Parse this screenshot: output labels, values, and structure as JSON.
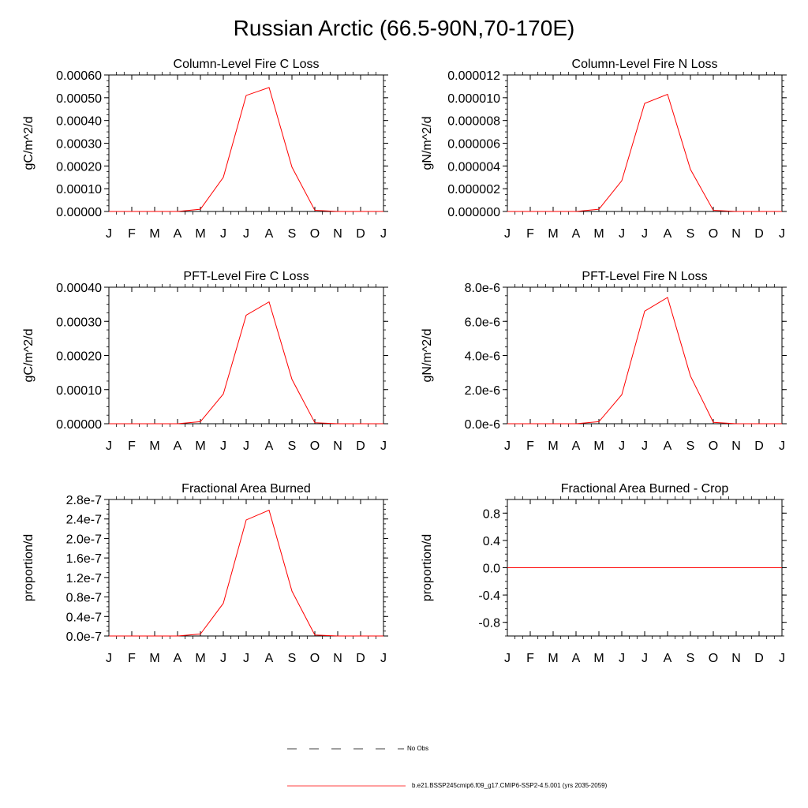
{
  "page_title": "Russian Arctic (66.5-90N,70-170E)",
  "colors": {
    "model": "#ff0000",
    "axis": "#000000",
    "obs": "#000000"
  },
  "legend": {
    "obs_label": "No Obs",
    "model_label": "b.e21.BSSP245cmip6.f09_g17.CMIP6-SSP2-4.5.001 (yrs 2035-2059)"
  },
  "chart_data": [
    {
      "type": "line",
      "title": "Column-Level Fire C Loss",
      "xlabel": "",
      "ylabel": "gC/m^2/d",
      "x": [
        "J",
        "F",
        "M",
        "A",
        "M",
        "J",
        "J",
        "A",
        "S",
        "O",
        "N",
        "D",
        "J"
      ],
      "ylim": [
        0,
        0.0006
      ],
      "yticks": [
        0,
        0.0001,
        0.0002,
        0.0003,
        0.0004,
        0.0005,
        0.0006
      ],
      "ytick_labels": [
        "0.00000",
        "0.00010",
        "0.00020",
        "0.00030",
        "0.00040",
        "0.00050",
        "0.00060"
      ],
      "series": [
        {
          "values": [
            0,
            0,
            0,
            0,
            1e-05,
            0.00015,
            0.00051,
            0.000545,
            0.000195,
            5e-06,
            0,
            0,
            0
          ]
        }
      ]
    },
    {
      "type": "line",
      "title": "Column-Level Fire N Loss",
      "xlabel": "",
      "ylabel": "gN/m^2/d",
      "x": [
        "J",
        "F",
        "M",
        "A",
        "M",
        "J",
        "J",
        "A",
        "S",
        "O",
        "N",
        "D",
        "J"
      ],
      "ylim": [
        0,
        1.2e-05
      ],
      "yticks": [
        0,
        2e-06,
        4e-06,
        6e-06,
        8e-06,
        1e-05,
        1.2e-05
      ],
      "ytick_labels": [
        "0.000000",
        "0.000002",
        "0.000004",
        "0.000006",
        "0.000008",
        "0.000010",
        "0.000012"
      ],
      "series": [
        {
          "values": [
            0,
            0,
            0,
            0,
            2e-07,
            2.7e-06,
            9.5e-06,
            1.03e-05,
            3.7e-06,
            1e-07,
            0,
            0,
            0
          ]
        }
      ]
    },
    {
      "type": "line",
      "title": "PFT-Level Fire C Loss",
      "xlabel": "",
      "ylabel": "gC/m^2/d",
      "x": [
        "J",
        "F",
        "M",
        "A",
        "M",
        "J",
        "J",
        "A",
        "S",
        "O",
        "N",
        "D",
        "J"
      ],
      "ylim": [
        0,
        0.0004
      ],
      "yticks": [
        0,
        0.0001,
        0.0002,
        0.0003,
        0.0004
      ],
      "ytick_labels": [
        "0.00000",
        "0.00010",
        "0.00020",
        "0.00030",
        "0.00040"
      ],
      "series": [
        {
          "values": [
            0,
            0,
            0,
            0,
            6e-06,
            8.7e-05,
            0.000318,
            0.000357,
            0.00013,
            3e-06,
            0,
            0,
            0
          ]
        }
      ]
    },
    {
      "type": "line",
      "title": "PFT-Level Fire N Loss",
      "xlabel": "",
      "ylabel": "gN/m^2/d",
      "x": [
        "J",
        "F",
        "M",
        "A",
        "M",
        "J",
        "J",
        "A",
        "S",
        "O",
        "N",
        "D",
        "J"
      ],
      "ylim": [
        0,
        8e-06
      ],
      "yticks": [
        0,
        2e-06,
        4e-06,
        6e-06,
        8e-06
      ],
      "ytick_labels": [
        "0.0e-6",
        "2.0e-6",
        "4.0e-6",
        "6.0e-6",
        "8.0e-6"
      ],
      "series": [
        {
          "values": [
            0,
            0,
            0,
            0,
            1.2e-07,
            1.7e-06,
            6.6e-06,
            7.4e-06,
            2.8e-06,
            8e-08,
            0,
            0,
            0
          ]
        }
      ]
    },
    {
      "type": "line",
      "title": "Fractional Area Burned",
      "xlabel": "",
      "ylabel": "proportion/d",
      "x": [
        "J",
        "F",
        "M",
        "A",
        "M",
        "J",
        "J",
        "A",
        "S",
        "O",
        "N",
        "D",
        "J"
      ],
      "ylim": [
        0,
        2.8e-07
      ],
      "yticks": [
        0,
        4e-08,
        8e-08,
        1.2e-07,
        1.6e-07,
        2e-07,
        2.4e-07,
        2.8e-07
      ],
      "ytick_labels": [
        "0.0e-7",
        "0.4e-7",
        "0.8e-7",
        "1.2e-7",
        "1.6e-7",
        "2.0e-7",
        "2.4e-7",
        "2.8e-7"
      ],
      "series": [
        {
          "values": [
            0,
            0,
            0,
            0,
            4e-09,
            6.7e-08,
            2.38e-07,
            2.58e-07,
            9.2e-08,
            2e-09,
            0,
            0,
            0
          ]
        }
      ]
    },
    {
      "type": "line",
      "title": "Fractional Area Burned - Crop",
      "xlabel": "",
      "ylabel": "proportion/d",
      "x": [
        "J",
        "F",
        "M",
        "A",
        "M",
        "J",
        "J",
        "A",
        "S",
        "O",
        "N",
        "D",
        "J"
      ],
      "ylim": [
        -1,
        1
      ],
      "yticks": [
        -0.8,
        -0.4,
        0,
        0.4,
        0.8
      ],
      "ytick_labels": [
        "-0.8",
        "-0.4",
        "0.0",
        "0.4",
        "0.8"
      ],
      "series": [
        {
          "values": [
            0,
            0,
            0,
            0,
            0,
            0,
            0,
            0,
            0,
            0,
            0,
            0,
            0
          ]
        }
      ]
    }
  ]
}
